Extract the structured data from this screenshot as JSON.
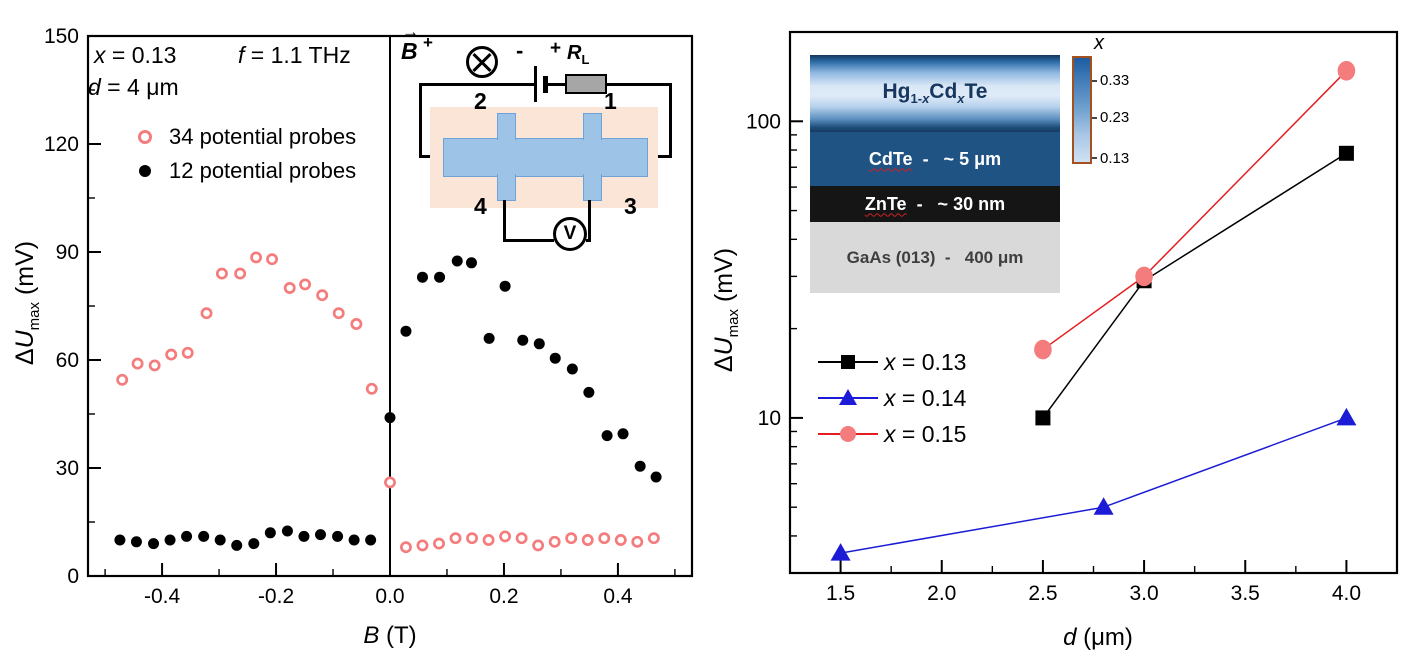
{
  "page": {
    "background": "#ffffff"
  },
  "left_chart": {
    "annotations": [
      {
        "var": "x",
        "rest": " = 0.13"
      },
      {
        "var": "f",
        "rest": " = 1.1 THz"
      },
      {
        "var": "d",
        "rest": " = 4 μm"
      }
    ],
    "legend": [
      {
        "marker": "open-circle",
        "label": "34 potential probes"
      },
      {
        "marker": "filled-circle",
        "label": "12 potential probes"
      }
    ],
    "xlabel": {
      "var": "B",
      "rest": " (T)"
    },
    "ylabel": {
      "prefix": "Δ",
      "var": "U",
      "sub": "max",
      "rest": " (mV)"
    }
  },
  "right_chart": {
    "legend": [
      {
        "marker": "square",
        "var": "x",
        "rest": " = 0.13"
      },
      {
        "marker": "triangle",
        "var": "x",
        "rest": " = 0.14"
      },
      {
        "marker": "circle",
        "var": "x",
        "rest": " = 0.15"
      }
    ],
    "xlabel": {
      "var": "d",
      "rest": " (μm)"
    },
    "ylabel": {
      "prefix": "Δ",
      "var": "U",
      "sub": "max",
      "rest": " (mV)"
    },
    "layers_inset": {
      "colorbar_title": "x",
      "colorbar_ticks": [
        "0.33",
        "0.23",
        "0.13"
      ],
      "hg": {
        "p1": "Hg",
        "s1a": "1-",
        "s1x": "x",
        "p2": "Cd",
        "s2x": "x",
        "p3": "Te"
      },
      "cdte": {
        "word": "CdTe",
        "rest": "  -   ~ 5 μm"
      },
      "znte": {
        "word": "ZnTe",
        "rest": "  -   ~ 30 nm"
      },
      "gaas": {
        "text": "GaAs (013)  -   400 μm"
      }
    }
  },
  "circuit_inset": {
    "b_label": "B",
    "b_arrow": "→",
    "b_sup": "+",
    "battery_minus": "-",
    "battery_plus": "+",
    "resistor": "R",
    "resistor_sub": "L",
    "contact_1": "1",
    "contact_2": "2",
    "contact_3": "3",
    "contact_4": "4",
    "voltmeter": "V"
  },
  "chart_data": [
    {
      "type": "scatter",
      "title": "",
      "xlabel": "B (T)",
      "ylabel": "ΔU_max (mV)",
      "xscale": "linear",
      "yscale": "linear",
      "xlim": [
        -0.53,
        0.53
      ],
      "ylim": [
        0,
        150
      ],
      "x_major_ticks": [
        -0.4,
        -0.2,
        0.0,
        0.2,
        0.4
      ],
      "x_minor_ticks": [
        -0.5,
        -0.3,
        -0.1,
        0.1,
        0.3,
        0.5
      ],
      "y_major_ticks": [
        0,
        30,
        60,
        90,
        120,
        150
      ],
      "y_minor_ticks": [
        15,
        45,
        75,
        105,
        135
      ],
      "zero_line_x": 0,
      "grid": false,
      "legend_position": "upper-left",
      "annotations": [
        "x = 0.13",
        "f = 1.1 THz",
        "d = 4 μm"
      ],
      "series": [
        {
          "name": "34 potential probes",
          "marker": "open-circle",
          "color": "#F47C7C",
          "points": [
            [
              -0.47,
              54.5
            ],
            [
              -0.443,
              59
            ],
            [
              -0.413,
              58.5
            ],
            [
              -0.384,
              61.5
            ],
            [
              -0.355,
              62
            ],
            [
              -0.322,
              73
            ],
            [
              -0.295,
              84
            ],
            [
              -0.263,
              84
            ],
            [
              -0.235,
              88.5
            ],
            [
              -0.207,
              88
            ],
            [
              -0.176,
              80
            ],
            [
              -0.149,
              81
            ],
            [
              -0.119,
              78
            ],
            [
              -0.09,
              73
            ],
            [
              -0.059,
              70
            ],
            [
              -0.032,
              52
            ],
            [
              0.0,
              26
            ],
            [
              0.028,
              8
            ],
            [
              0.057,
              8.5
            ],
            [
              0.086,
              9
            ],
            [
              0.115,
              10.5
            ],
            [
              0.144,
              10.5
            ],
            [
              0.173,
              10
            ],
            [
              0.202,
              11
            ],
            [
              0.231,
              10.5
            ],
            [
              0.26,
              8.5
            ],
            [
              0.289,
              9.5
            ],
            [
              0.318,
              10.5
            ],
            [
              0.347,
              10
            ],
            [
              0.376,
              10.5
            ],
            [
              0.405,
              10
            ],
            [
              0.434,
              9.5
            ],
            [
              0.463,
              10.5
            ]
          ]
        },
        {
          "name": "12 potential probes",
          "marker": "filled-circle",
          "color": "#000000",
          "points": [
            [
              -0.474,
              10
            ],
            [
              -0.445,
              9.5
            ],
            [
              -0.415,
              9
            ],
            [
              -0.386,
              10
            ],
            [
              -0.357,
              11
            ],
            [
              -0.327,
              11
            ],
            [
              -0.298,
              10
            ],
            [
              -0.269,
              8.5
            ],
            [
              -0.239,
              9
            ],
            [
              -0.21,
              12
            ],
            [
              -0.18,
              12.5
            ],
            [
              -0.151,
              11
            ],
            [
              -0.122,
              11.5
            ],
            [
              -0.092,
              11
            ],
            [
              -0.063,
              10
            ],
            [
              -0.034,
              10
            ],
            [
              0.0,
              44
            ],
            [
              0.028,
              68
            ],
            [
              0.057,
              83
            ],
            [
              0.087,
              83
            ],
            [
              0.118,
              87.5
            ],
            [
              0.143,
              87
            ],
            [
              0.174,
              66
            ],
            [
              0.202,
              80.5
            ],
            [
              0.233,
              65.5
            ],
            [
              0.262,
              64.5
            ],
            [
              0.29,
              60.5
            ],
            [
              0.32,
              57.5
            ],
            [
              0.349,
              51
            ],
            [
              0.381,
              39
            ],
            [
              0.409,
              39.5
            ],
            [
              0.439,
              30.5
            ],
            [
              0.467,
              27.5
            ]
          ]
        }
      ]
    },
    {
      "type": "line",
      "title": "",
      "xlabel": "d (μm)",
      "ylabel": "ΔU_max (mV)",
      "xscale": "linear",
      "yscale": "log",
      "xlim": [
        1.25,
        4.25
      ],
      "ylim": [
        3,
        200
      ],
      "x_major_ticks": [
        1.5,
        2.0,
        2.5,
        3.0,
        3.5,
        4.0
      ],
      "x_minor_ticks": [
        1.75,
        2.25,
        2.75,
        3.25,
        3.75
      ],
      "y_major_ticks": [
        10,
        100
      ],
      "y_minor_ticks": [
        4,
        5,
        6,
        7,
        8,
        9,
        20,
        30,
        40,
        50,
        60,
        70,
        80,
        90
      ],
      "grid": false,
      "legend_position": "center-left",
      "series": [
        {
          "name": "x = 0.13",
          "marker": "square",
          "color": "#000000",
          "line_color": "#000000",
          "points": [
            [
              2.5,
              10
            ],
            [
              3.0,
              29
            ],
            [
              4.0,
              78
            ]
          ]
        },
        {
          "name": "x = 0.14",
          "marker": "triangle",
          "color": "#1C1CD6",
          "line_color": "#1C1CD6",
          "points": [
            [
              1.5,
              3.5
            ],
            [
              2.8,
              5.0
            ],
            [
              4.0,
              10
            ]
          ]
        },
        {
          "name": "x = 0.15",
          "marker": "circle",
          "color": "#F47C7C",
          "line_color": "#E41E20",
          "points": [
            [
              2.5,
              17
            ],
            [
              3.0,
              30
            ],
            [
              4.0,
              148
            ]
          ]
        }
      ]
    }
  ]
}
